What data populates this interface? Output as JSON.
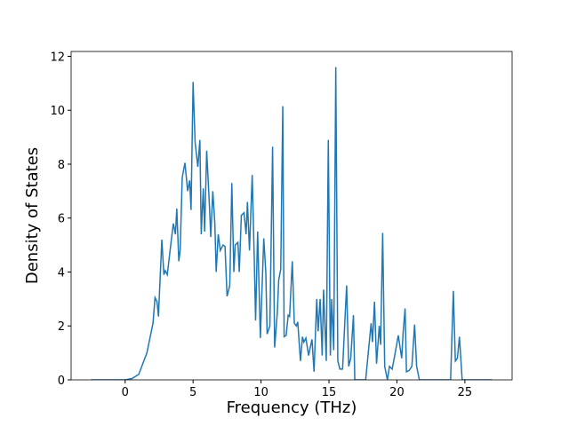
{
  "chart_data": {
    "type": "line",
    "x_label": "Frequency (THz)",
    "y_label": "Density of States",
    "xlim": [
      -3.975,
      28.475
    ],
    "ylim": [
      0,
      12.18
    ],
    "xticks": [
      0,
      5,
      10,
      15,
      20,
      25
    ],
    "yticks": [
      0,
      2,
      4,
      6,
      8,
      10,
      12
    ],
    "series": [
      {
        "color": "#1f77b4",
        "x": [
          -2.5,
          0,
          0.5,
          1,
          1.3,
          1.6,
          2.05,
          2.2,
          2.35,
          2.45,
          2.7,
          2.85,
          2.95,
          3.1,
          3.4,
          3.55,
          3.7,
          3.8,
          3.95,
          4.05,
          4.2,
          4.4,
          4.6,
          4.75,
          4.85,
          5.0,
          5.15,
          5.35,
          5.5,
          5.6,
          5.75,
          5.85,
          6.0,
          6.2,
          6.3,
          6.45,
          6.6,
          6.7,
          6.85,
          7.0,
          7.2,
          7.35,
          7.5,
          7.7,
          7.85,
          8.0,
          8.1,
          8.3,
          8.4,
          8.55,
          8.75,
          8.9,
          9.0,
          9.15,
          9.35,
          9.5,
          9.6,
          9.75,
          9.95,
          10.2,
          10.35,
          10.45,
          10.65,
          10.85,
          11.0,
          11.2,
          11.3,
          11.45,
          11.6,
          11.7,
          11.85,
          12.0,
          12.1,
          12.3,
          12.45,
          12.6,
          12.7,
          12.9,
          13.05,
          13.15,
          13.3,
          13.5,
          13.6,
          13.75,
          13.9,
          14.1,
          14.2,
          14.35,
          14.5,
          14.6,
          14.8,
          14.95,
          15.1,
          15.2,
          15.35,
          15.5,
          15.65,
          15.8,
          16.0,
          16.2,
          16.3,
          16.45,
          16.6,
          16.8,
          16.9,
          17.7,
          18.1,
          18.2,
          18.35,
          18.5,
          18.7,
          18.8,
          18.95,
          19.1,
          19.3,
          19.45,
          19.65,
          19.8,
          20.1,
          20.35,
          20.45,
          20.6,
          20.7,
          20.9,
          21.1,
          21.3,
          21.45,
          21.65,
          23.95,
          24.15,
          24.3,
          24.45,
          24.6,
          24.8,
          27.0
        ],
        "values": [
          0,
          0,
          0.05,
          0.2,
          0.6,
          1.0,
          2.1,
          3.05,
          2.9,
          2.35,
          5.2,
          3.9,
          4.05,
          3.9,
          5.2,
          5.8,
          5.4,
          6.35,
          4.4,
          4.8,
          7.5,
          8.05,
          7.0,
          7.4,
          6.3,
          11.05,
          8.8,
          7.9,
          8.9,
          5.4,
          7.1,
          5.5,
          8.5,
          6.5,
          5.3,
          7.0,
          5.8,
          4.0,
          5.4,
          4.8,
          5.0,
          4.95,
          3.1,
          3.5,
          7.3,
          4.0,
          5.0,
          5.1,
          4.0,
          6.1,
          6.2,
          5.4,
          6.6,
          4.8,
          7.6,
          4.5,
          2.2,
          5.5,
          1.55,
          5.25,
          4.0,
          1.7,
          2.0,
          8.65,
          1.2,
          2.5,
          3.7,
          4.1,
          10.15,
          1.6,
          1.65,
          2.4,
          2.35,
          4.4,
          2.1,
          2.0,
          2.15,
          0.7,
          1.6,
          1.4,
          1.55,
          0.9,
          1.15,
          1.5,
          0.3,
          3.0,
          1.8,
          3.0,
          0.9,
          3.35,
          0.7,
          8.9,
          0.9,
          3.0,
          1.1,
          11.6,
          0.7,
          0.4,
          0.4,
          2.5,
          3.5,
          0.5,
          0.8,
          2.4,
          0,
          0,
          2.1,
          1.4,
          2.9,
          0.6,
          2.0,
          1.3,
          5.45,
          0.5,
          0,
          0.5,
          0.4,
          0.8,
          1.65,
          0.8,
          1.7,
          2.65,
          0.3,
          0.35,
          0.5,
          2.05,
          0.5,
          0,
          0,
          3.3,
          0.7,
          0.8,
          1.6,
          0,
          0
        ]
      }
    ]
  }
}
